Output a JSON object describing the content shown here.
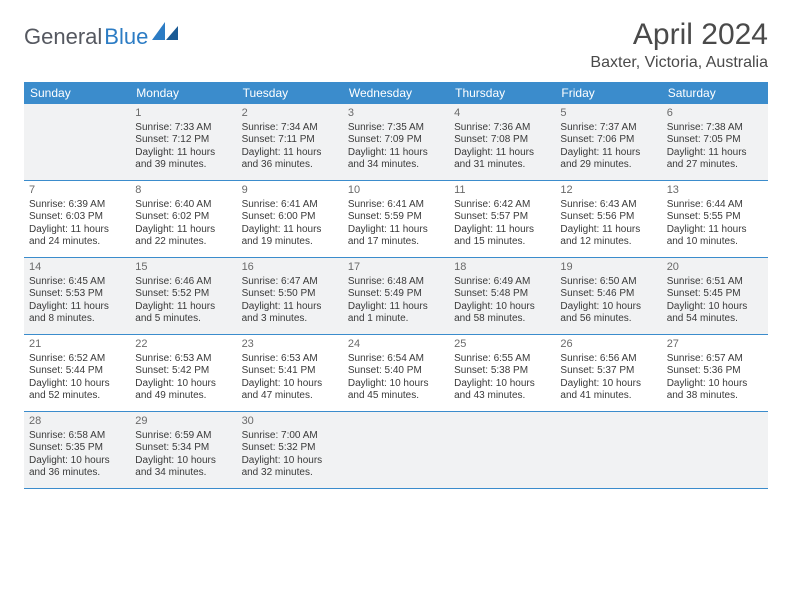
{
  "logo": {
    "textGray": "General",
    "textBlue": "Blue"
  },
  "title": "April 2024",
  "location": "Baxter, Victoria, Australia",
  "colors": {
    "headerBar": "#3b8ccc",
    "shadeBg": "#f1f2f3",
    "borderColor": "#3b8ccc",
    "logoBlue": "#2c7cc4",
    "logoGray": "#555860",
    "textColor": "#3a3a3a"
  },
  "daysOfWeek": [
    "Sunday",
    "Monday",
    "Tuesday",
    "Wednesday",
    "Thursday",
    "Friday",
    "Saturday"
  ],
  "weeks": [
    [
      {
        "num": "",
        "sunrise": "",
        "sunset": "",
        "daylight": ""
      },
      {
        "num": "1",
        "sunrise": "Sunrise: 7:33 AM",
        "sunset": "Sunset: 7:12 PM",
        "daylight": "Daylight: 11 hours and 39 minutes."
      },
      {
        "num": "2",
        "sunrise": "Sunrise: 7:34 AM",
        "sunset": "Sunset: 7:11 PM",
        "daylight": "Daylight: 11 hours and 36 minutes."
      },
      {
        "num": "3",
        "sunrise": "Sunrise: 7:35 AM",
        "sunset": "Sunset: 7:09 PM",
        "daylight": "Daylight: 11 hours and 34 minutes."
      },
      {
        "num": "4",
        "sunrise": "Sunrise: 7:36 AM",
        "sunset": "Sunset: 7:08 PM",
        "daylight": "Daylight: 11 hours and 31 minutes."
      },
      {
        "num": "5",
        "sunrise": "Sunrise: 7:37 AM",
        "sunset": "Sunset: 7:06 PM",
        "daylight": "Daylight: 11 hours and 29 minutes."
      },
      {
        "num": "6",
        "sunrise": "Sunrise: 7:38 AM",
        "sunset": "Sunset: 7:05 PM",
        "daylight": "Daylight: 11 hours and 27 minutes."
      }
    ],
    [
      {
        "num": "7",
        "sunrise": "Sunrise: 6:39 AM",
        "sunset": "Sunset: 6:03 PM",
        "daylight": "Daylight: 11 hours and 24 minutes."
      },
      {
        "num": "8",
        "sunrise": "Sunrise: 6:40 AM",
        "sunset": "Sunset: 6:02 PM",
        "daylight": "Daylight: 11 hours and 22 minutes."
      },
      {
        "num": "9",
        "sunrise": "Sunrise: 6:41 AM",
        "sunset": "Sunset: 6:00 PM",
        "daylight": "Daylight: 11 hours and 19 minutes."
      },
      {
        "num": "10",
        "sunrise": "Sunrise: 6:41 AM",
        "sunset": "Sunset: 5:59 PM",
        "daylight": "Daylight: 11 hours and 17 minutes."
      },
      {
        "num": "11",
        "sunrise": "Sunrise: 6:42 AM",
        "sunset": "Sunset: 5:57 PM",
        "daylight": "Daylight: 11 hours and 15 minutes."
      },
      {
        "num": "12",
        "sunrise": "Sunrise: 6:43 AM",
        "sunset": "Sunset: 5:56 PM",
        "daylight": "Daylight: 11 hours and 12 minutes."
      },
      {
        "num": "13",
        "sunrise": "Sunrise: 6:44 AM",
        "sunset": "Sunset: 5:55 PM",
        "daylight": "Daylight: 11 hours and 10 minutes."
      }
    ],
    [
      {
        "num": "14",
        "sunrise": "Sunrise: 6:45 AM",
        "sunset": "Sunset: 5:53 PM",
        "daylight": "Daylight: 11 hours and 8 minutes."
      },
      {
        "num": "15",
        "sunrise": "Sunrise: 6:46 AM",
        "sunset": "Sunset: 5:52 PM",
        "daylight": "Daylight: 11 hours and 5 minutes."
      },
      {
        "num": "16",
        "sunrise": "Sunrise: 6:47 AM",
        "sunset": "Sunset: 5:50 PM",
        "daylight": "Daylight: 11 hours and 3 minutes."
      },
      {
        "num": "17",
        "sunrise": "Sunrise: 6:48 AM",
        "sunset": "Sunset: 5:49 PM",
        "daylight": "Daylight: 11 hours and 1 minute."
      },
      {
        "num": "18",
        "sunrise": "Sunrise: 6:49 AM",
        "sunset": "Sunset: 5:48 PM",
        "daylight": "Daylight: 10 hours and 58 minutes."
      },
      {
        "num": "19",
        "sunrise": "Sunrise: 6:50 AM",
        "sunset": "Sunset: 5:46 PM",
        "daylight": "Daylight: 10 hours and 56 minutes."
      },
      {
        "num": "20",
        "sunrise": "Sunrise: 6:51 AM",
        "sunset": "Sunset: 5:45 PM",
        "daylight": "Daylight: 10 hours and 54 minutes."
      }
    ],
    [
      {
        "num": "21",
        "sunrise": "Sunrise: 6:52 AM",
        "sunset": "Sunset: 5:44 PM",
        "daylight": "Daylight: 10 hours and 52 minutes."
      },
      {
        "num": "22",
        "sunrise": "Sunrise: 6:53 AM",
        "sunset": "Sunset: 5:42 PM",
        "daylight": "Daylight: 10 hours and 49 minutes."
      },
      {
        "num": "23",
        "sunrise": "Sunrise: 6:53 AM",
        "sunset": "Sunset: 5:41 PM",
        "daylight": "Daylight: 10 hours and 47 minutes."
      },
      {
        "num": "24",
        "sunrise": "Sunrise: 6:54 AM",
        "sunset": "Sunset: 5:40 PM",
        "daylight": "Daylight: 10 hours and 45 minutes."
      },
      {
        "num": "25",
        "sunrise": "Sunrise: 6:55 AM",
        "sunset": "Sunset: 5:38 PM",
        "daylight": "Daylight: 10 hours and 43 minutes."
      },
      {
        "num": "26",
        "sunrise": "Sunrise: 6:56 AM",
        "sunset": "Sunset: 5:37 PM",
        "daylight": "Daylight: 10 hours and 41 minutes."
      },
      {
        "num": "27",
        "sunrise": "Sunrise: 6:57 AM",
        "sunset": "Sunset: 5:36 PM",
        "daylight": "Daylight: 10 hours and 38 minutes."
      }
    ],
    [
      {
        "num": "28",
        "sunrise": "Sunrise: 6:58 AM",
        "sunset": "Sunset: 5:35 PM",
        "daylight": "Daylight: 10 hours and 36 minutes."
      },
      {
        "num": "29",
        "sunrise": "Sunrise: 6:59 AM",
        "sunset": "Sunset: 5:34 PM",
        "daylight": "Daylight: 10 hours and 34 minutes."
      },
      {
        "num": "30",
        "sunrise": "Sunrise: 7:00 AM",
        "sunset": "Sunset: 5:32 PM",
        "daylight": "Daylight: 10 hours and 32 minutes."
      },
      {
        "num": "",
        "sunrise": "",
        "sunset": "",
        "daylight": ""
      },
      {
        "num": "",
        "sunrise": "",
        "sunset": "",
        "daylight": ""
      },
      {
        "num": "",
        "sunrise": "",
        "sunset": "",
        "daylight": ""
      },
      {
        "num": "",
        "sunrise": "",
        "sunset": "",
        "daylight": ""
      }
    ]
  ]
}
